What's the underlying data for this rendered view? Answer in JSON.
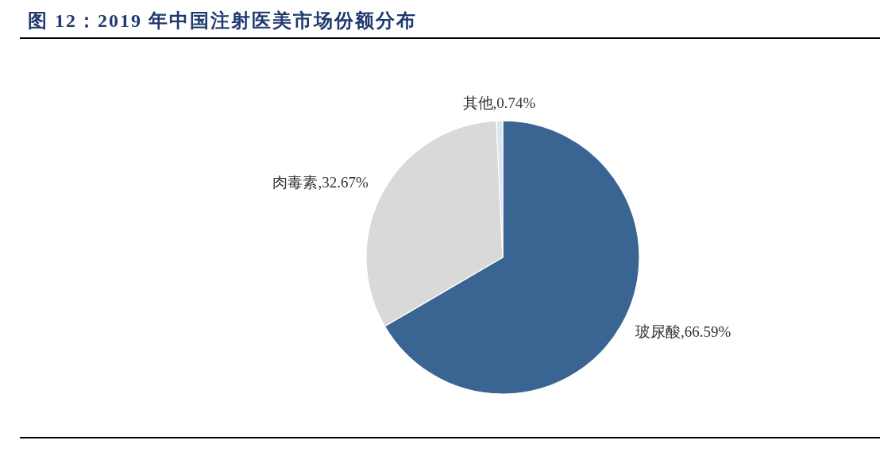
{
  "chart_data": {
    "type": "pie",
    "title": "图 12：2019 年中国注射医美市场份额分布",
    "categories": [
      "玻尿酸",
      "肉毒素",
      "其他"
    ],
    "values": [
      66.59,
      32.67,
      0.74
    ],
    "colors": [
      "#3a6492",
      "#d9d9d9",
      "#dde3ef"
    ],
    "value_labels": [
      "66.59%",
      "32.67%",
      "0.74%"
    ]
  }
}
